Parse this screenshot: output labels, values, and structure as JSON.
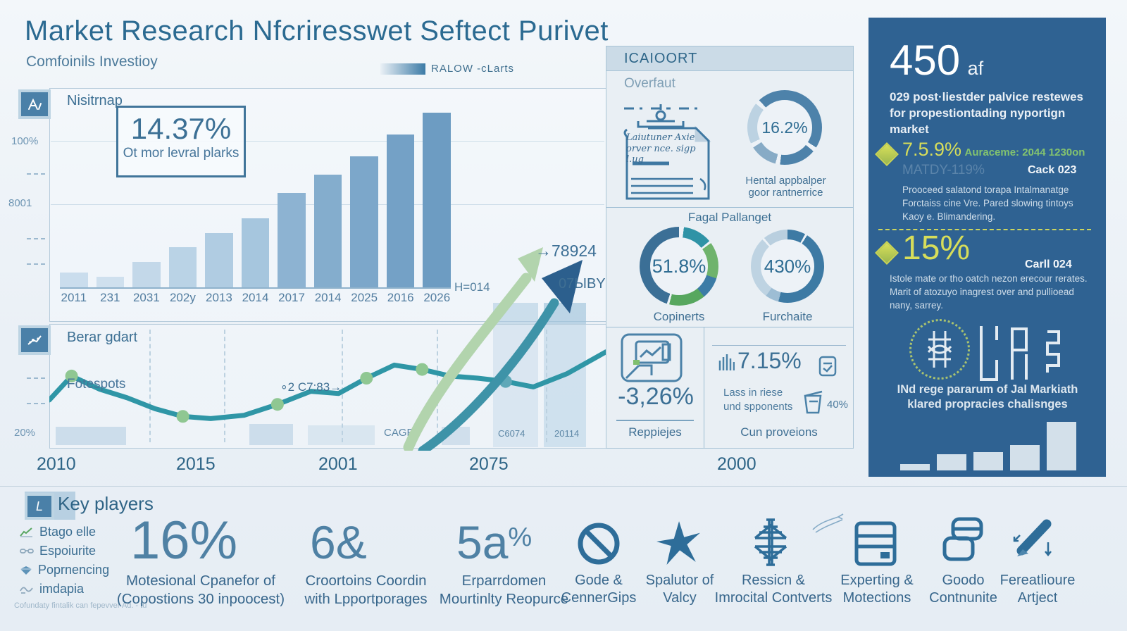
{
  "header": {
    "title": "Market Research Nfcriresswet Seftect Purivet",
    "subtitle": "Comfoinils Investioy"
  },
  "x_axis": [
    "2010",
    "2015",
    "2001",
    "2075",
    "2000"
  ],
  "bar_panel": {
    "label": "Nisitrnap",
    "stat_value": "14.37%",
    "stat_caption": "Ot mor levral plarks"
  },
  "line_panel": {
    "label": "Berar gdart"
  },
  "overview_panel": {
    "header": "ICAIOORT",
    "subheader": "Overfaut",
    "doc_text": "Laiutuner Axie\norver nce. sigp\nl.ug",
    "section2_title": "Fagal Pallanget",
    "stat_left": {
      "value": "-3,26%",
      "caption": "Reppiejes"
    },
    "stat_right": {
      "value": "7.15%",
      "lines": "Lass in riese\nund spponents",
      "secondary": "40%",
      "caption": "Cun proveions"
    }
  },
  "sidebar": {
    "big_value": "450",
    "big_suffix": "af",
    "intro": "029 post·liestder palvice restewes for propestiontading nyportign market",
    "item1": {
      "value": "7.5.9%",
      "suffix": "Auraceme: 2044 1230on",
      "ghost": "MATDY-119%",
      "tag": "Cack 023",
      "body": "Prooceed salatond torapa Intalmanatge Forctaiss cine Vre. Pared slowing tintoys Kaoy e. Blimandering."
    },
    "item2": {
      "value": "15%",
      "tag": "Carll 024",
      "body": "Istole mate or tho oatch nezon erecour rerates. Marit of atozuyo inagrest over and pullioead nany, sarrey."
    },
    "footer": "INd rege pararum of Jal Markiath\nklared propracies chalisnges"
  },
  "key_players": {
    "title": "Key players",
    "items": [
      "Btago elle",
      "Espoiurite",
      "Poprnencing",
      "imdapia"
    ],
    "footnote": "Cofundaty fintalik can fepevver Ad. - tu"
  },
  "bottom_stats": [
    {
      "value": "16%",
      "caption": "Motesional Cpanefor of\n(Copostions 30 inpoocest)"
    },
    {
      "value": "6&",
      "caption": "Croortoins Coordin\nwith Lpportporages"
    },
    {
      "value": "5a",
      "suffix": "%",
      "caption": "Erparrdomen\nMourtinlty Reopurce"
    }
  ],
  "bottom_icons": [
    {
      "name": "no-sign",
      "caption": "Gode &\nCennerGips"
    },
    {
      "name": "pinwheel",
      "caption": "Spalutor of\nValcy"
    },
    {
      "name": "ornate-cross",
      "caption": "Ressicn &\nImrocital Contverts"
    },
    {
      "name": "server",
      "caption": "Experting &\nMotections"
    },
    {
      "name": "cards",
      "caption": "Goodo\nContnunite"
    },
    {
      "name": "pen",
      "caption": "Fereatlioure\nArtject"
    }
  ],
  "colors": {
    "accent": "#2e6d99",
    "sidebar": "#2f6292",
    "teal_line": "#2f96a6",
    "green_dot": "#8fc792",
    "yellow": "#d6dd5a",
    "green_text": "#83c36f",
    "bar_light": "#c9dcea",
    "bar_dark": "#7fa9ca"
  },
  "chart_data": [
    {
      "type": "bar",
      "title": "Nisitrnap",
      "legend": "RALOW -cLarts",
      "categories": [
        "2011",
        "231",
        "2031",
        "202y",
        "2013",
        "2014",
        "2017",
        "2014",
        "2025",
        "2016",
        "2026"
      ],
      "values": [
        8,
        6,
        14,
        22,
        30,
        38,
        52,
        62,
        72,
        84,
        96
      ],
      "ylim": [
        0,
        100
      ],
      "y_ticks": [
        "100%",
        "8001",
        "20%"
      ],
      "note": "H=014",
      "bar_colors": [
        "#cadded",
        "#cfe0ee",
        "#c3d8e9",
        "#bad3e6",
        "#b0cce2",
        "#a6c6de",
        "#8db3d2",
        "#84adcd",
        "#7ca7ca",
        "#74a1c6",
        "#6d9cc2"
      ]
    },
    {
      "type": "line",
      "title": "Berar gdart",
      "series": [
        {
          "name": "Fotespots",
          "x": [
            0,
            4,
            9,
            14,
            19,
            24,
            29,
            35,
            41,
            47,
            52,
            57,
            62,
            67,
            72,
            77,
            82,
            87,
            93,
            100
          ],
          "y": [
            40,
            62,
            50,
            42,
            32,
            25,
            23,
            26,
            36,
            48,
            46,
            60,
            72,
            68,
            62,
            60,
            57,
            52,
            64,
            84
          ],
          "dots": [
            {
              "i": 1,
              "c": "green"
            },
            {
              "i": 5,
              "c": "green"
            },
            {
              "i": 8,
              "c": "green"
            },
            {
              "i": 11,
              "c": "green"
            },
            {
              "i": 13,
              "c": "green"
            },
            {
              "i": 16,
              "c": "teal"
            }
          ]
        }
      ],
      "ylim": [
        0,
        100
      ],
      "annotations": [
        "∘2 C7:83→",
        "→78924",
        "07ЫBY",
        "CAGR",
        "C6074",
        "20114"
      ]
    },
    {
      "type": "bar",
      "title": "sidebar-trend",
      "categories": [
        "",
        "",
        "",
        "",
        ""
      ],
      "values": [
        12,
        30,
        33,
        46,
        88
      ],
      "ylim": [
        0,
        100
      ],
      "bar_colors": [
        "#d3e0ea",
        "#d3e0ea",
        "#d3e0ea",
        "#d3e0ea",
        "#d3e0ea"
      ]
    },
    {
      "type": "donut",
      "value": "16.2%",
      "caption": "Hental appbalper\ngoor rantnerrice",
      "segments": [
        [
          "#4d82aa",
          34
        ],
        [
          "#edf2f7",
          2
        ],
        [
          "#4d82aa",
          16
        ],
        [
          "#edf2f7",
          2
        ],
        [
          "#87abc6",
          12
        ],
        [
          "#edf2f7",
          2
        ],
        [
          "#bcd2e2",
          18
        ],
        [
          "#edf2f7",
          2
        ],
        [
          "#4d82aa",
          12
        ]
      ]
    },
    {
      "type": "donut",
      "value": "51.8%",
      "caption": "Copinerts",
      "segments": [
        [
          "#edf2f7",
          2
        ],
        [
          "#2f93a6",
          12
        ],
        [
          "#edf2f7",
          1
        ],
        [
          "#6fb36c",
          15
        ],
        [
          "#3c7ca6",
          9
        ],
        [
          "#57a75f",
          15
        ],
        [
          "#edf2f7",
          1
        ],
        [
          "#3b6f96",
          45
        ]
      ]
    },
    {
      "type": "donut",
      "value": "430%",
      "caption": "Furchaite",
      "segments": [
        [
          "#3d7aa4",
          8
        ],
        [
          "#edf2f7",
          1
        ],
        [
          "#3d7aa4",
          45
        ],
        [
          "#9dbdd4",
          6
        ],
        [
          "#bed3e2",
          28
        ],
        [
          "#edf2f7",
          1
        ],
        [
          "#b9cfdf",
          11
        ]
      ]
    }
  ]
}
